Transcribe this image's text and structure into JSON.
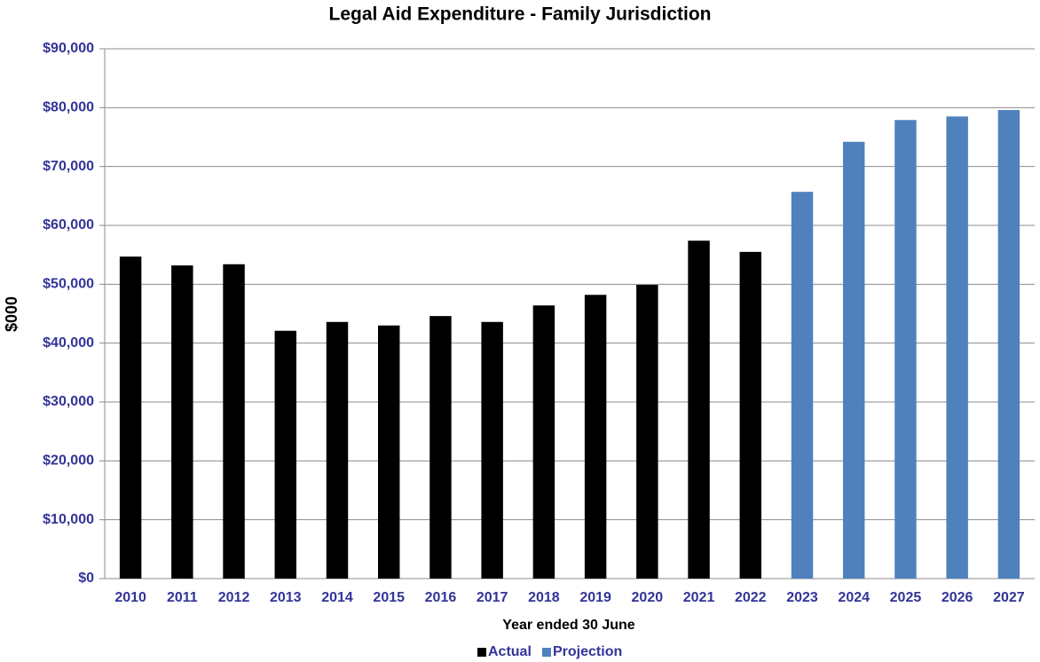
{
  "chart_data": {
    "type": "bar",
    "title": "Legal Aid Expenditure - Family Jurisdiction",
    "x_label": "Year ended 30 June",
    "y_label": "$000",
    "categories": [
      "2010",
      "2011",
      "2012",
      "2013",
      "2014",
      "2015",
      "2016",
      "2017",
      "2018",
      "2019",
      "2020",
      "2021",
      "2022",
      "2023",
      "2024",
      "2025",
      "2026",
      "2027"
    ],
    "series": [
      {
        "name": "Actual",
        "color": "#000000",
        "values": [
          54700,
          53200,
          53400,
          42100,
          43600,
          43000,
          44600,
          43600,
          46400,
          48200,
          49900,
          57400,
          55500,
          null,
          null,
          null,
          null,
          null
        ]
      },
      {
        "name": "Projection",
        "color": "#4f81bd",
        "values": [
          null,
          null,
          null,
          null,
          null,
          null,
          null,
          null,
          null,
          null,
          null,
          null,
          null,
          65700,
          74200,
          77900,
          78500,
          79600
        ]
      }
    ],
    "ylim": [
      0,
      90000
    ],
    "yticks": [
      {
        "value": 0,
        "label": "$0"
      },
      {
        "value": 10000,
        "label": "$10,000"
      },
      {
        "value": 20000,
        "label": "$20,000"
      },
      {
        "value": 30000,
        "label": "$30,000"
      },
      {
        "value": 40000,
        "label": "$40,000"
      },
      {
        "value": 50000,
        "label": "$50,000"
      },
      {
        "value": 60000,
        "label": "$60,000"
      },
      {
        "value": 70000,
        "label": "$70,000"
      },
      {
        "value": 80000,
        "label": "$80,000"
      },
      {
        "value": 90000,
        "label": "$90,000"
      }
    ],
    "grid": true,
    "legend": "bottom"
  }
}
